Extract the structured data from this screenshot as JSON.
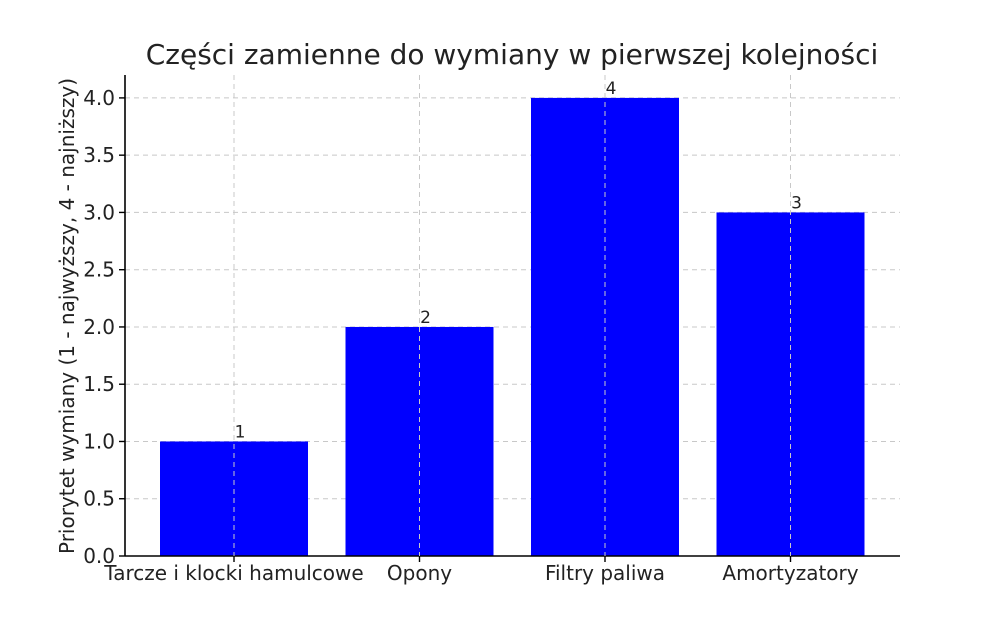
{
  "chart_data": {
    "type": "bar",
    "title": "Części zamienne do wymiany w pierwszej kolejności",
    "xlabel": "",
    "ylabel": "Priorytet wymiany (1 - najwyższy, 4 - najniższy)",
    "categories": [
      "Tarcze i klocki hamulcowe",
      "Opony",
      "Filtry paliwa",
      "Amortyzatory"
    ],
    "values": [
      1,
      2,
      4,
      3
    ],
    "data_labels": [
      "1",
      "2",
      "4",
      "3"
    ],
    "ylim": [
      0,
      4.2
    ],
    "yticks": [
      "0.0",
      "0.5",
      "1.0",
      "1.5",
      "2.0",
      "2.5",
      "3.0",
      "3.5",
      "4.0"
    ],
    "grid": true,
    "bar_color": "#0000ff"
  }
}
